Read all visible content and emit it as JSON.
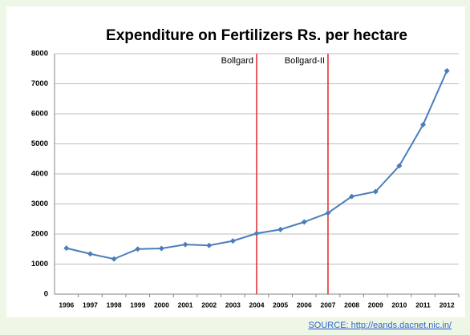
{
  "chart_data": {
    "type": "line",
    "title": "Expenditure on Fertilizers Rs. per hectare",
    "categories": [
      "1996",
      "1997",
      "1998",
      "1999",
      "2000",
      "2001",
      "2002",
      "2003",
      "2004",
      "2005",
      "2006",
      "2007",
      "2008",
      "2009",
      "2010",
      "2011",
      "2012"
    ],
    "series": [
      {
        "name": "Expenditure",
        "color": "#4a7ebb",
        "values": [
          1530,
          1340,
          1170,
          1500,
          1520,
          1650,
          1620,
          1770,
          2020,
          2150,
          2400,
          2700,
          3250,
          3410,
          4270,
          5640,
          7430
        ]
      }
    ],
    "ylim": [
      0,
      8000
    ],
    "yticks": [
      0,
      1000,
      2000,
      3000,
      4000,
      5000,
      6000,
      7000,
      8000
    ],
    "grid": true,
    "annotations": [
      {
        "text": "Bollgard",
        "category": "2004",
        "color": "#e8262b"
      },
      {
        "text": "Bollgard-II",
        "category": "2007",
        "color": "#e8262b"
      }
    ],
    "source": "SOURCE:  http://eands.dacnet.nic.in/"
  }
}
